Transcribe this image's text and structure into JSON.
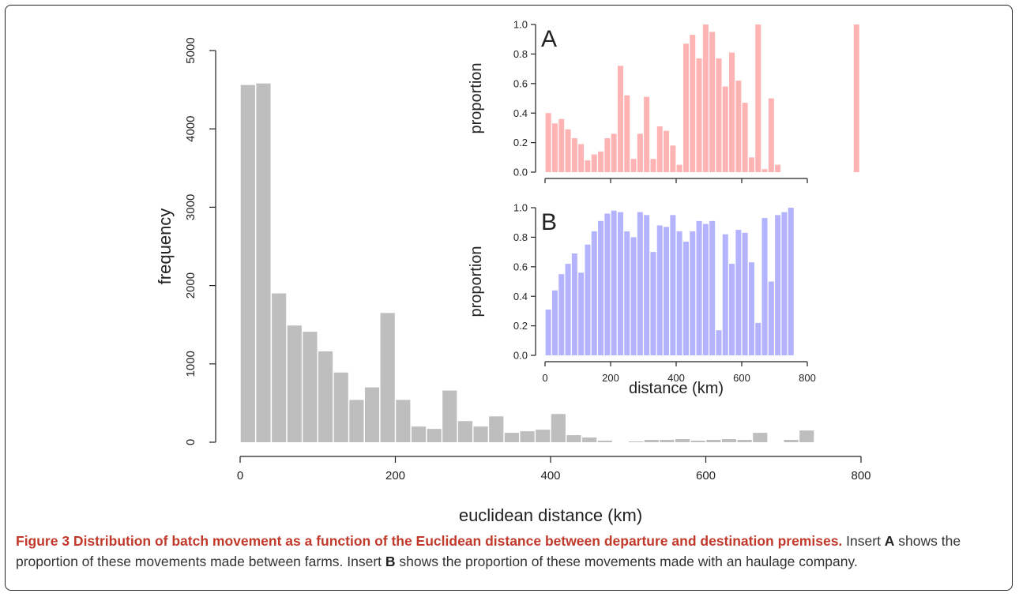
{
  "chart_data": [
    {
      "id": "main",
      "type": "bar",
      "xlabel": "euclidean distance (km)",
      "ylabel": "frequency",
      "xlim": [
        0,
        800
      ],
      "ylim": [
        0,
        5000
      ],
      "xticks": [
        0,
        200,
        400,
        600,
        800
      ],
      "yticks": [
        0,
        1000,
        2000,
        3000,
        4000,
        5000
      ],
      "bin_width": 20,
      "bin_start": 0,
      "color": "#bebebe",
      "values": [
        4560,
        4580,
        1900,
        1490,
        1410,
        1160,
        890,
        540,
        700,
        1650,
        540,
        200,
        170,
        660,
        270,
        200,
        330,
        120,
        140,
        160,
        360,
        90,
        60,
        20,
        0,
        10,
        30,
        30,
        40,
        20,
        30,
        40,
        30,
        120,
        0,
        30,
        150
      ]
    },
    {
      "id": "A",
      "type": "bar",
      "panel_label": "A",
      "ylabel": "proportion",
      "xlim": [
        0,
        800
      ],
      "ylim": [
        0,
        1
      ],
      "yticks": [
        "0.0",
        "0.2",
        "0.4",
        "0.6",
        "0.8",
        "1.0"
      ],
      "bin_width": 20,
      "bin_start": 0,
      "color": "#ffb3b3",
      "values": [
        0.4,
        0.33,
        0.36,
        0.29,
        0.23,
        0.19,
        0.08,
        0.12,
        0.14,
        0.23,
        0.26,
        0.72,
        0.52,
        0.09,
        0.26,
        0.51,
        0.09,
        0.31,
        0.28,
        0.18,
        0.05,
        0.87,
        0.93,
        0.77,
        1.0,
        0.95,
        0.77,
        0.58,
        0.81,
        0.62,
        0.47,
        0.1,
        1.0,
        0.02,
        0.5,
        0.05,
        0.0,
        0.0,
        0.0,
        0.0,
        0.0,
        0.0,
        0.0,
        0.0,
        0.0,
        0.0,
        0.0,
        1.0
      ]
    },
    {
      "id": "B",
      "type": "bar",
      "panel_label": "B",
      "ylabel": "proportion",
      "xlabel": "distance (km)",
      "xlim": [
        0,
        800
      ],
      "ylim": [
        0,
        1
      ],
      "xticks": [
        0,
        200,
        400,
        600,
        800
      ],
      "yticks": [
        "0.0",
        "0.2",
        "0.4",
        "0.6",
        "0.8",
        "1.0"
      ],
      "bin_width": 20,
      "bin_start": 0,
      "color": "#b3b3ff",
      "values": [
        0.31,
        0.44,
        0.55,
        0.62,
        0.69,
        0.56,
        0.75,
        0.84,
        0.91,
        0.96,
        0.98,
        0.97,
        0.84,
        0.8,
        0.97,
        0.95,
        0.7,
        0.88,
        0.87,
        0.95,
        0.84,
        0.77,
        0.84,
        0.91,
        0.89,
        0.91,
        0.17,
        0.82,
        0.62,
        0.85,
        0.83,
        0.63,
        0.22,
        0.93,
        0.5,
        0.95,
        0.97,
        1.0
      ]
    }
  ],
  "caption": {
    "bold": "Figure 3 Distribution of batch movement as a function of the Euclidean distance between departure and destination premises.",
    "part1": " Insert ",
    "letterA": "A",
    "part2": " shows the proportion of these movements made between farms. Insert ",
    "letterB": "B",
    "part3": " shows the proportion of these movements made with an haulage company."
  }
}
